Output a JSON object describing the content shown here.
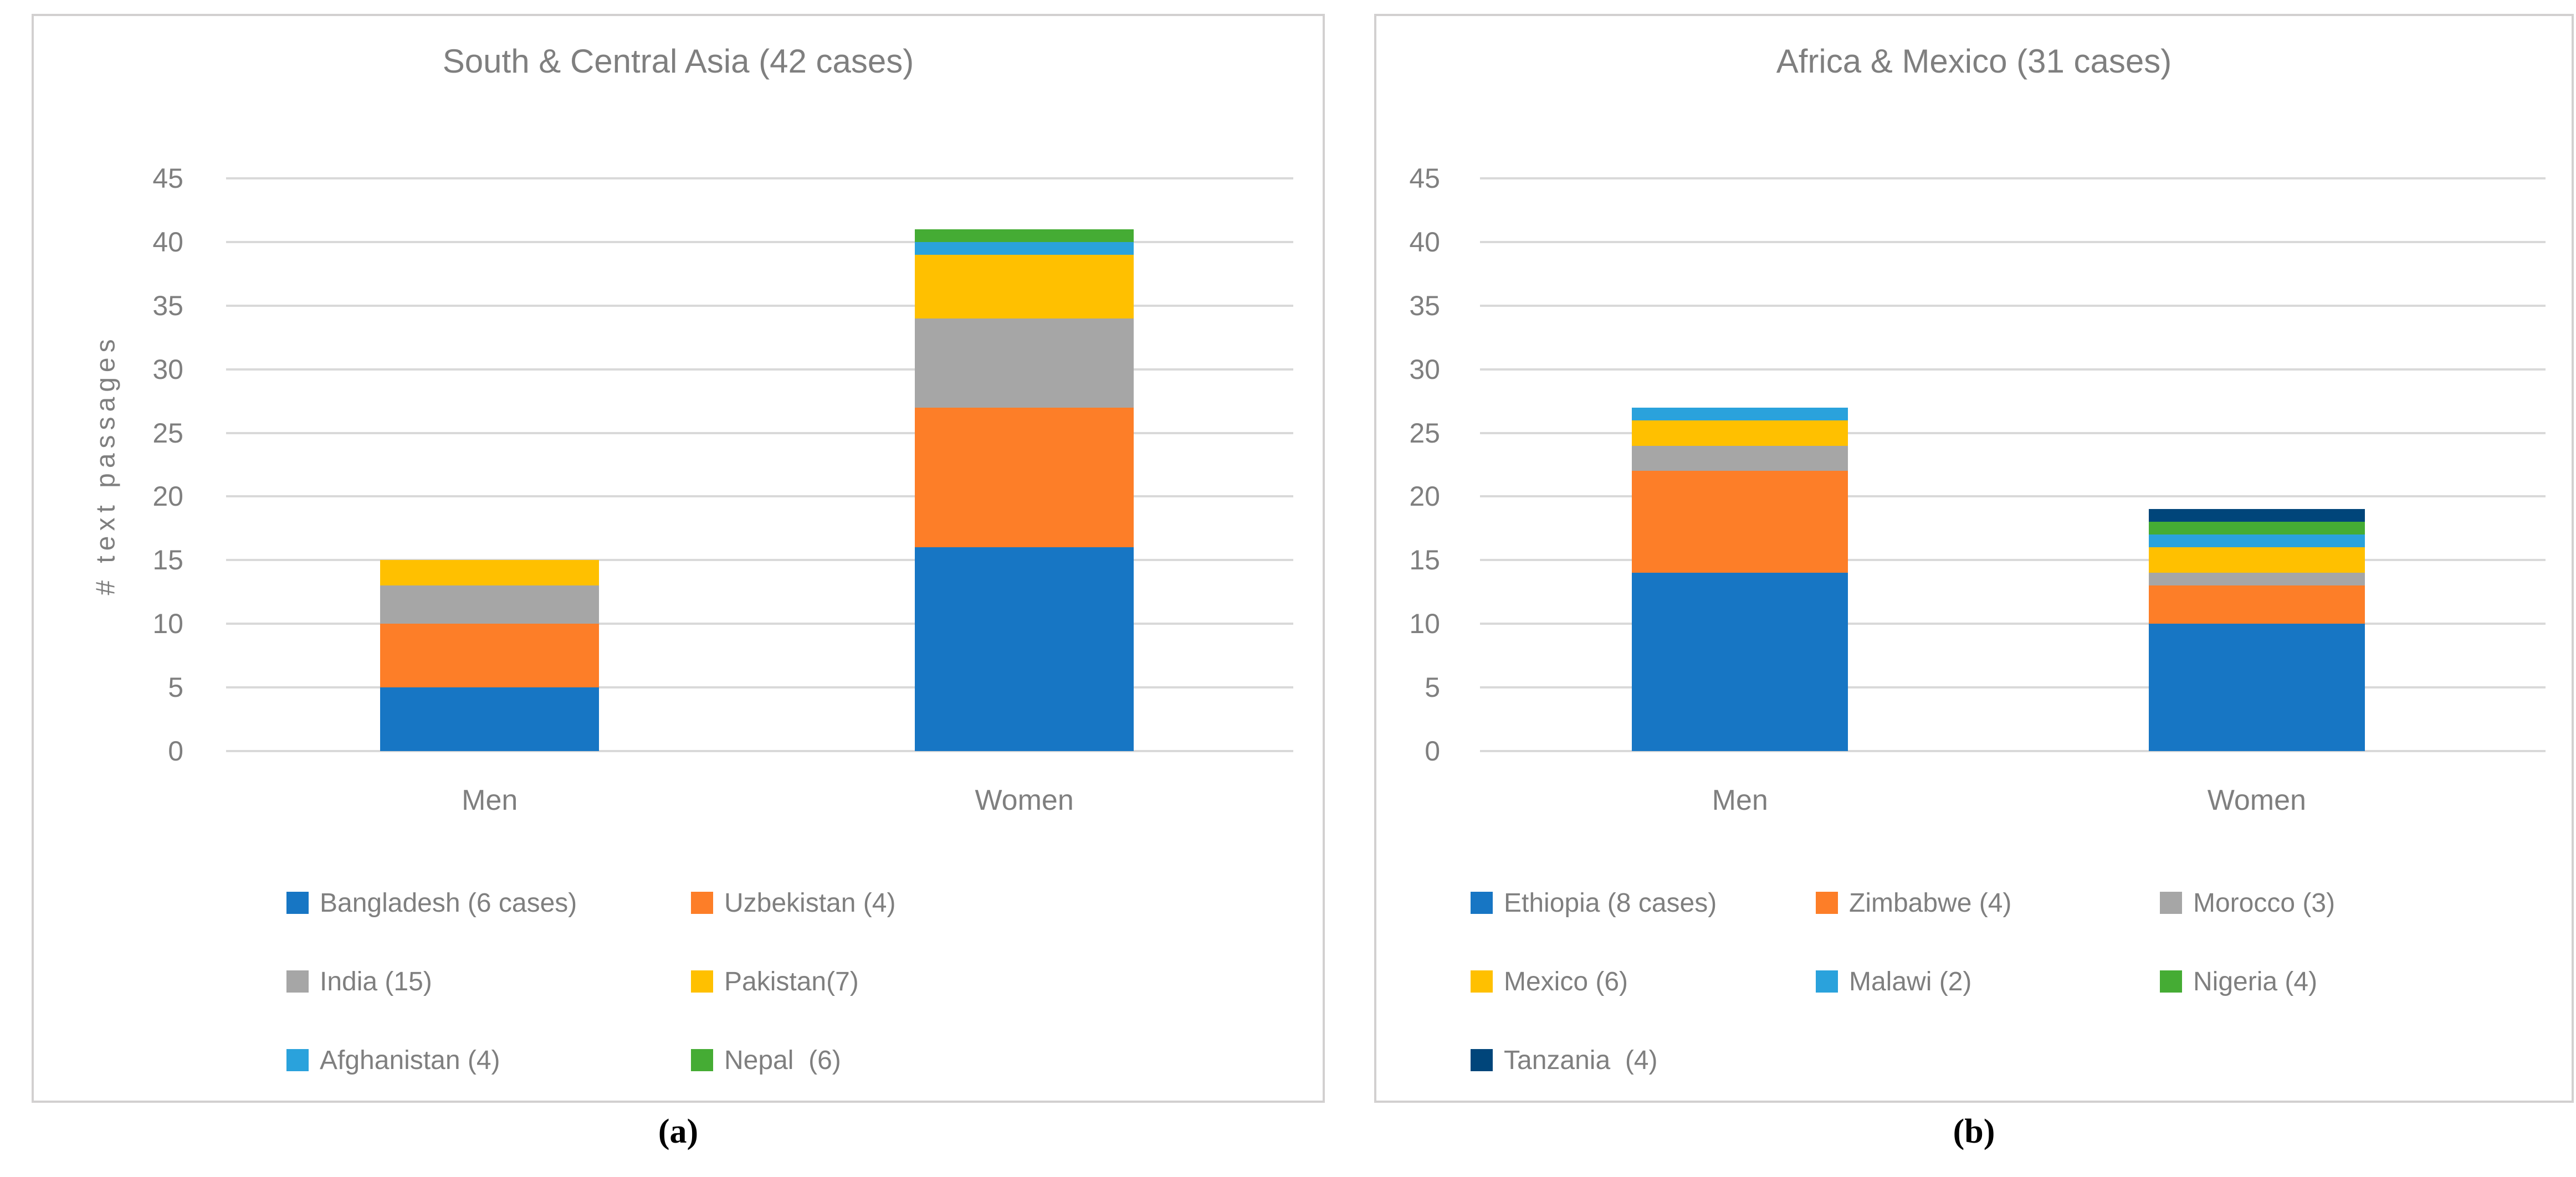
{
  "figure": {
    "captions": {
      "a": "(a)",
      "b": "(b)"
    }
  },
  "colors": {
    "blue": "#1776C4",
    "orange": "#FD7E28",
    "gray": "#A6A6A6",
    "yellow": "#FFC000",
    "lightblue": "#2AA2DC",
    "green": "#45AC34",
    "navy": "#00457A",
    "grid": "#D9D9D9",
    "border": "#D2D0D0",
    "text": "#7F7F7F"
  },
  "chart_data": [
    {
      "type": "bar",
      "stacked": true,
      "title": "South & Central Asia (42 cases)",
      "xlabel": "",
      "ylabel": "# text passages",
      "categories": [
        "Men",
        "Women"
      ],
      "ylim": [
        0,
        45
      ],
      "ytick_step": 5,
      "grid": true,
      "legend_position": "bottom",
      "legend_columns": 2,
      "series": [
        {
          "name": "Bangladesh (6 cases)",
          "color_key": "blue",
          "values": [
            5,
            16
          ]
        },
        {
          "name": "Uzbekistan (4)",
          "color_key": "orange",
          "values": [
            5,
            11
          ]
        },
        {
          "name": "India (15)",
          "color_key": "gray",
          "values": [
            3,
            7
          ]
        },
        {
          "name": "Pakistan(7)",
          "color_key": "yellow",
          "values": [
            2,
            5
          ]
        },
        {
          "name": "Afghanistan (4)",
          "color_key": "lightblue",
          "values": [
            0,
            1
          ]
        },
        {
          "name": "Nepal  (6)",
          "color_key": "green",
          "values": [
            0,
            1
          ]
        }
      ],
      "totals": {
        "Men": 15,
        "Women": 41
      }
    },
    {
      "type": "bar",
      "stacked": true,
      "title": "Africa & Mexico (31 cases)",
      "xlabel": "",
      "ylabel": "",
      "categories": [
        "Men",
        "Women"
      ],
      "ylim": [
        0,
        45
      ],
      "ytick_step": 5,
      "grid": true,
      "legend_position": "bottom",
      "legend_columns": 3,
      "series": [
        {
          "name": "Ethiopia (8 cases)",
          "color_key": "blue",
          "values": [
            14,
            10
          ]
        },
        {
          "name": "Zimbabwe (4)",
          "color_key": "orange",
          "values": [
            8,
            3
          ]
        },
        {
          "name": "Morocco (3)",
          "color_key": "gray",
          "values": [
            2,
            1
          ]
        },
        {
          "name": "Mexico (6)",
          "color_key": "yellow",
          "values": [
            2,
            2
          ]
        },
        {
          "name": "Malawi (2)",
          "color_key": "lightblue",
          "values": [
            1,
            1
          ]
        },
        {
          "name": "Nigeria (4)",
          "color_key": "green",
          "values": [
            0,
            1
          ]
        },
        {
          "name": "Tanzania  (4)",
          "color_key": "navy",
          "values": [
            0,
            1
          ]
        }
      ],
      "totals": {
        "Men": 27,
        "Women": 19
      }
    }
  ]
}
